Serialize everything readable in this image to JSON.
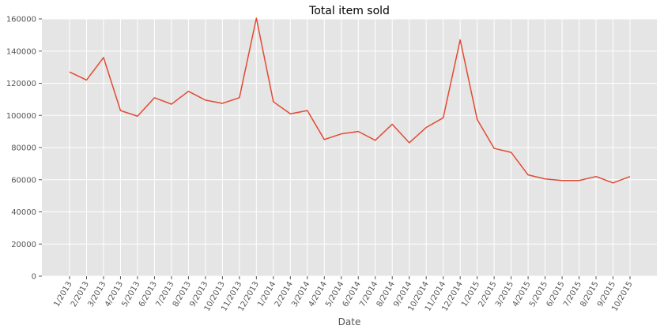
{
  "chart_data": {
    "type": "line",
    "title": "Total item sold",
    "xlabel": "Date",
    "ylabel": "",
    "ylim": [
      0,
      160000
    ],
    "yticks": [
      0,
      20000,
      40000,
      60000,
      80000,
      100000,
      120000,
      140000,
      160000
    ],
    "grid": true,
    "categories": [
      "1/2013",
      "2/2013",
      "3/2013",
      "4/2013",
      "5/2013",
      "6/2013",
      "7/2013",
      "8/2013",
      "9/2013",
      "10/2013",
      "11/2013",
      "12/2013",
      "1/2014",
      "2/2014",
      "3/2014",
      "4/2014",
      "5/2014",
      "6/2014",
      "7/2014",
      "8/2014",
      "9/2014",
      "10/2014",
      "11/2014",
      "12/2014",
      "1/2015",
      "2/2015",
      "3/2015",
      "4/2015",
      "5/2015",
      "6/2015",
      "7/2015",
      "8/2015",
      "9/2015",
      "10/2015"
    ],
    "series": [
      {
        "values": [
          127000,
          122000,
          136000,
          103000,
          99500,
          111000,
          107000,
          115000,
          109500,
          107500,
          111000,
          160500,
          108500,
          101000,
          103000,
          85000,
          88500,
          90000,
          84500,
          94500,
          83000,
          92500,
          98500,
          147000,
          97500,
          79500,
          77000,
          63000,
          60500,
          59500,
          59500,
          62000,
          58000,
          62000
        ]
      }
    ],
    "colors": {
      "background": "#e5e5e5",
      "grid": "#ffffff",
      "line": "#e24a33",
      "tick_text": "#555555",
      "title_text": "#000000"
    }
  }
}
